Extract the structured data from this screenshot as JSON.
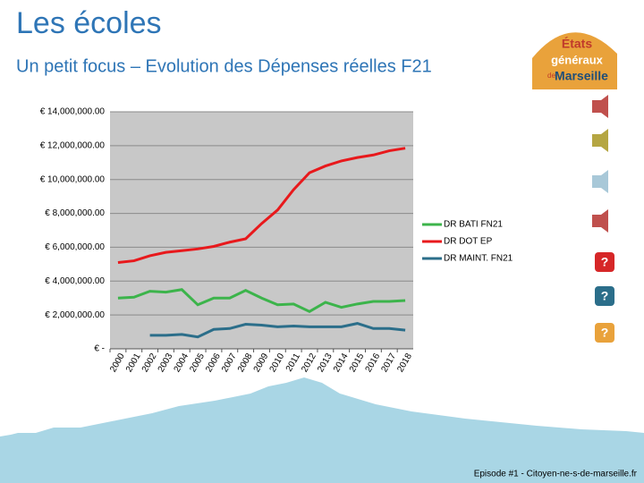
{
  "title": "Les écoles",
  "subtitle": "Un petit focus – Evolution des Dépenses réelles F21",
  "footer": "Episode #1 - Citoyen-ne-s-de-marseille.fr",
  "logo": [
    "États",
    "généraux",
    "de",
    "Marseille"
  ],
  "icons": [
    "?",
    "?",
    "?"
  ],
  "chart_data": {
    "type": "line",
    "categories": [
      "2000",
      "2001",
      "2002",
      "2003",
      "2004",
      "2005",
      "2006",
      "2007",
      "2008",
      "2009",
      "2010",
      "2011",
      "2012",
      "2013",
      "2014",
      "2015",
      "2016",
      "2017",
      "2018"
    ],
    "series": [
      {
        "name": "DR BATI FN21",
        "color": "#3cb44b",
        "values": [
          3000000,
          3050000,
          3400000,
          3350000,
          3500000,
          2600000,
          3000000,
          3000000,
          3450000,
          3000000,
          2600000,
          2650000,
          2200000,
          2750000,
          2450000,
          2650000,
          2800000,
          2800000,
          2850000
        ]
      },
      {
        "name": "DR DOT EP",
        "color": "#e8191c",
        "values": [
          5100000,
          5200000,
          5500000,
          5700000,
          5800000,
          5900000,
          6050000,
          6300000,
          6500000,
          7400000,
          8200000,
          9400000,
          10400000,
          10800000,
          11100000,
          11300000,
          11450000,
          11700000,
          11850000
        ]
      },
      {
        "name": "DR MAINT. FN21",
        "color": "#2b6e8a",
        "values": [
          null,
          null,
          800000,
          800000,
          850000,
          700000,
          1150000,
          1200000,
          1450000,
          1400000,
          1300000,
          1350000,
          1300000,
          1300000,
          1300000,
          1500000,
          1200000,
          1200000,
          1100000
        ]
      }
    ],
    "ylim": [
      0,
      14000000
    ],
    "yticks": [
      {
        "value": 0,
        "label": "€ -"
      },
      {
        "value": 2000000,
        "label": "€ 2,000,000.00"
      },
      {
        "value": 4000000,
        "label": "€ 4,000,000.00"
      },
      {
        "value": 6000000,
        "label": "€ 6,000,000.00"
      },
      {
        "value": 8000000,
        "label": "€ 8,000,000.00"
      },
      {
        "value": 10000000,
        "label": "€ 10,000,000.00"
      },
      {
        "value": 12000000,
        "label": "€ 12,000,000.00"
      },
      {
        "value": 14000000,
        "label": "€ 14,000,000.00"
      }
    ],
    "grid": true,
    "legend": "right"
  }
}
